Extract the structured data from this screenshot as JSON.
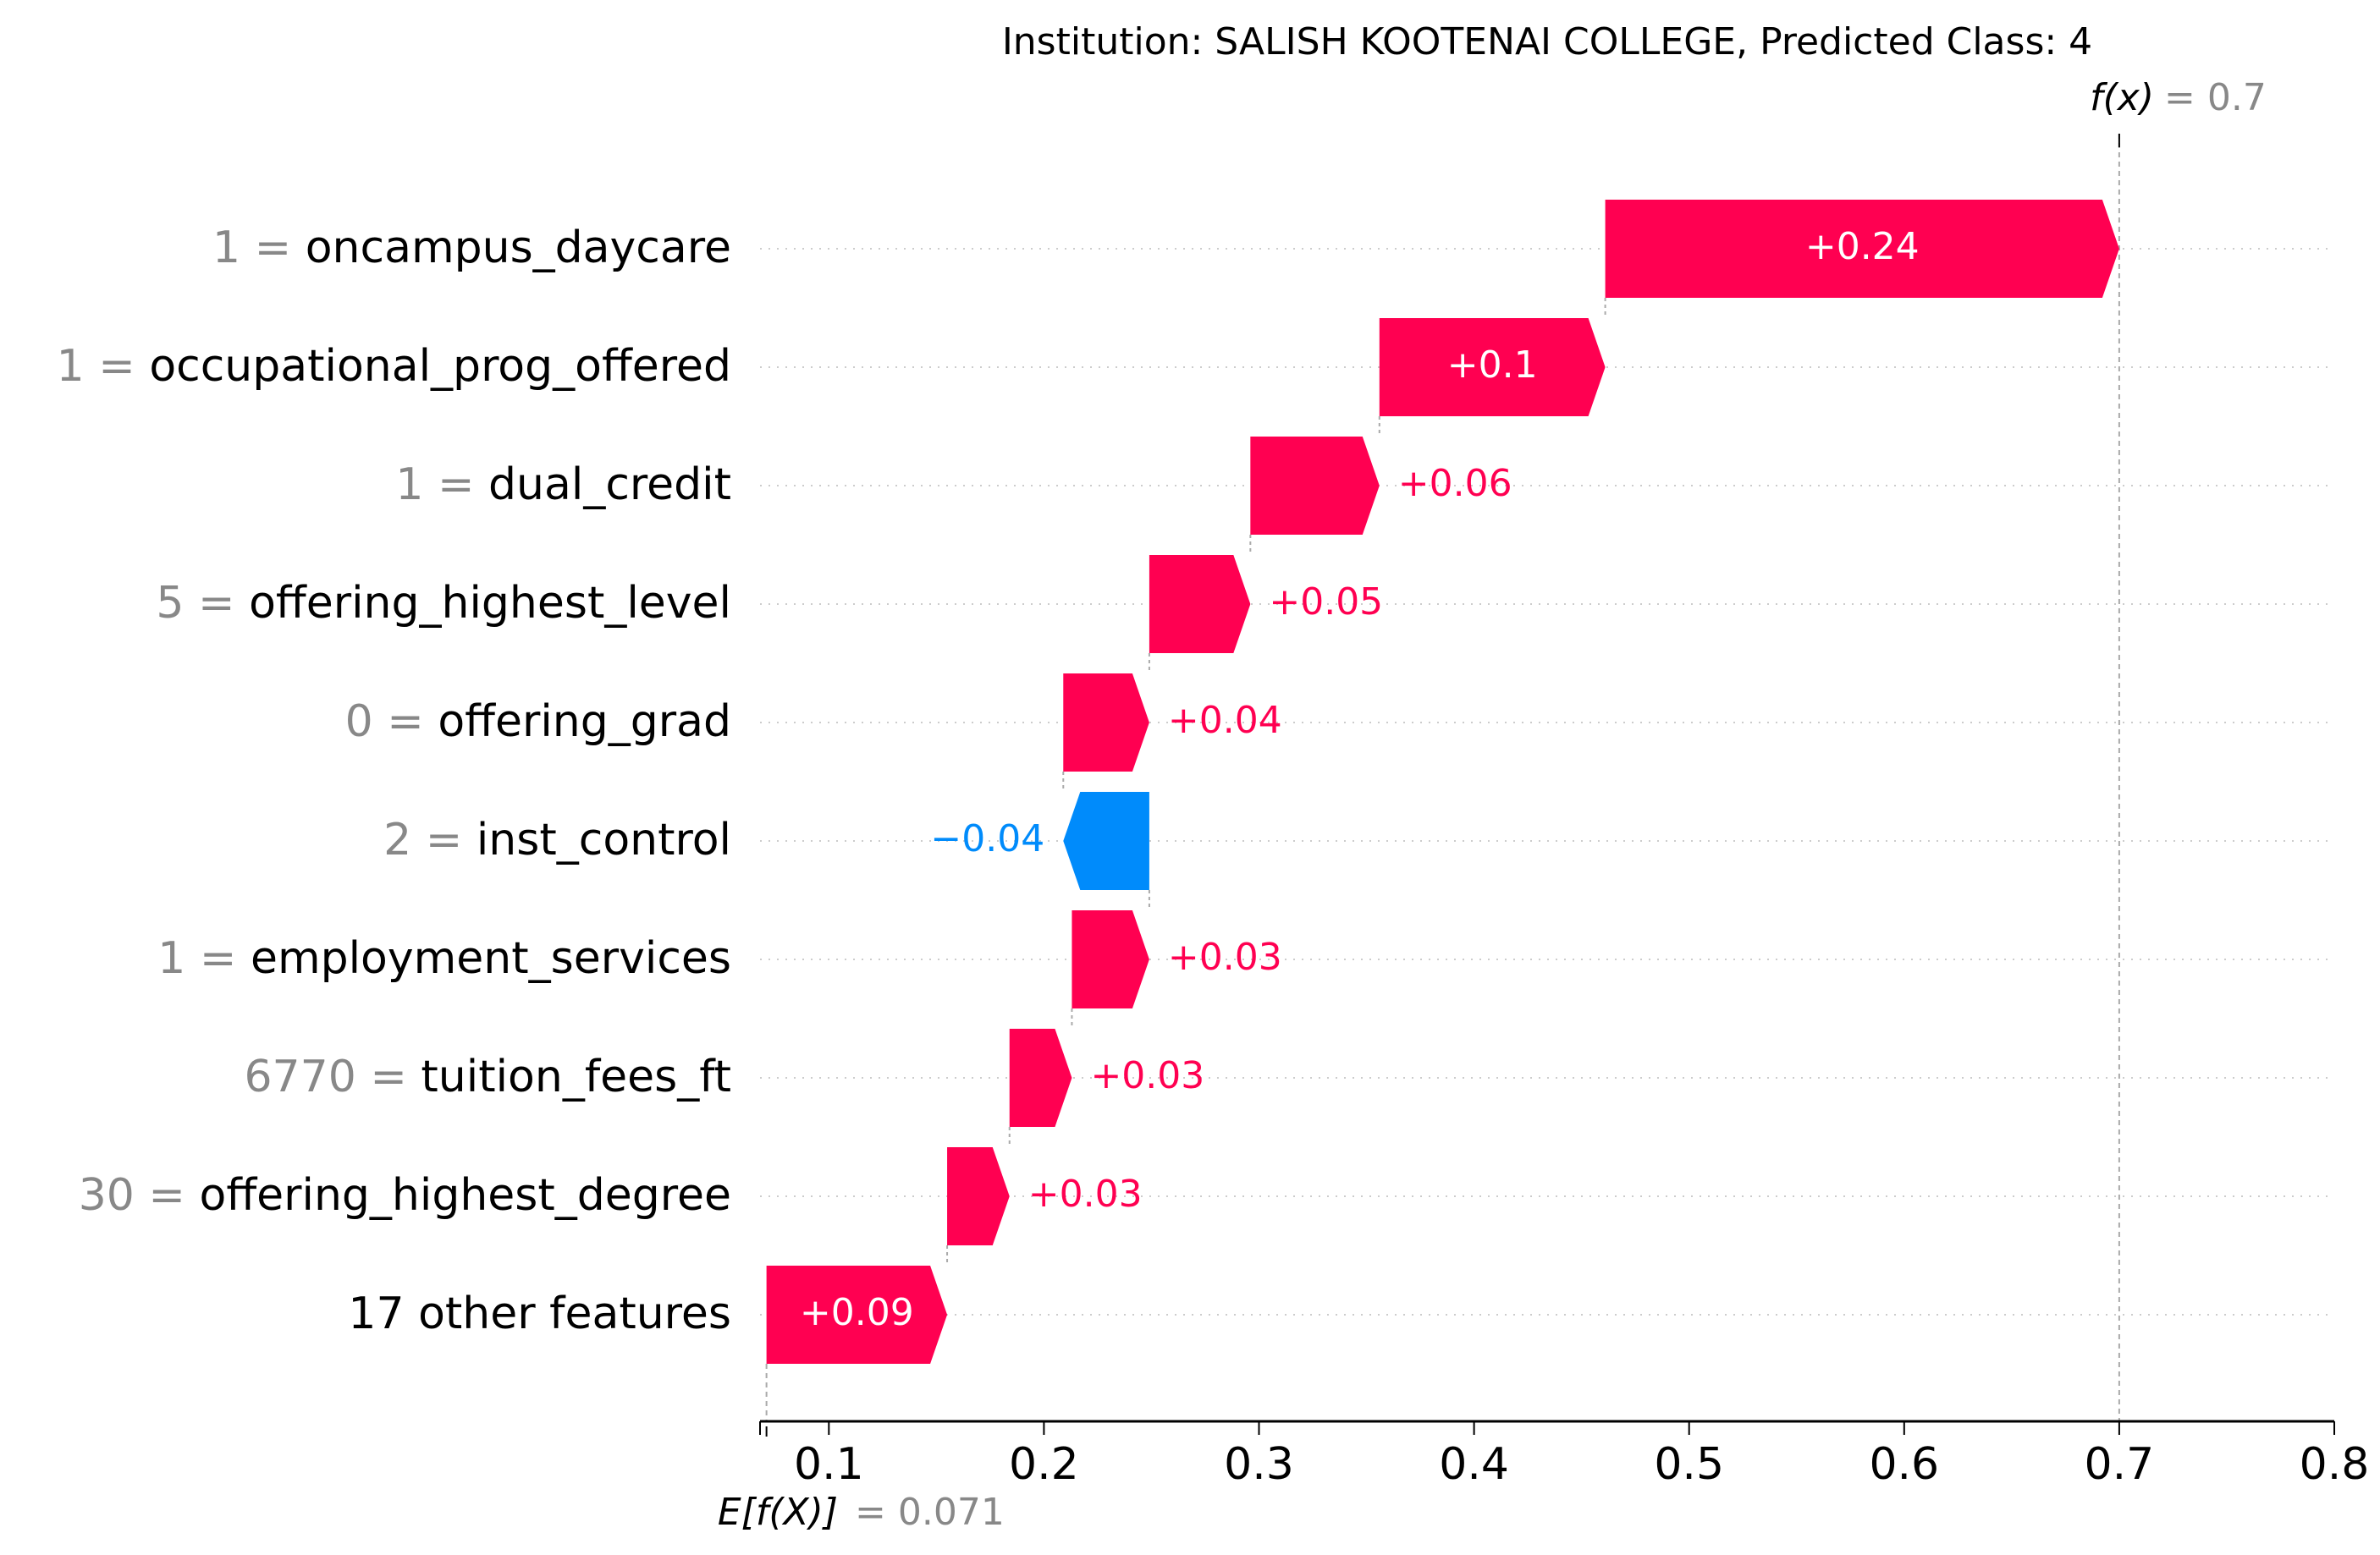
{
  "chart_data": {
    "type": "waterfall",
    "title": "Institution: SALISH KOOTENAI COLLEGE, Predicted Class: 4",
    "fx_label": "f(x)",
    "fx_value_text": "= 0.7",
    "efx_label": "E[f(X)]",
    "efx_value_text": "= 0.071",
    "base_value": 0.071,
    "output_value": 0.7,
    "xlim": [
      0.068,
      0.8
    ],
    "xticks": [
      0.1,
      0.2,
      0.3,
      0.4,
      0.5,
      0.6,
      0.7,
      0.8
    ],
    "xtick_labels": [
      "0.1",
      "0.2",
      "0.3",
      "0.4",
      "0.5",
      "0.6",
      "0.7",
      "0.8"
    ],
    "rows": [
      {
        "feature_value": "1",
        "feature_name": "oncampus_daycare",
        "label": "+0.24",
        "start": 0.461,
        "end": 0.7
      },
      {
        "feature_value": "1",
        "feature_name": "occupational_prog_offered",
        "label": "+0.1",
        "start": 0.356,
        "end": 0.461
      },
      {
        "feature_value": "1",
        "feature_name": "dual_credit",
        "label": "+0.06",
        "start": 0.296,
        "end": 0.356
      },
      {
        "feature_value": "5",
        "feature_name": "offering_highest_level",
        "label": "+0.05",
        "start": 0.249,
        "end": 0.296
      },
      {
        "feature_value": "0",
        "feature_name": "offering_grad",
        "label": "+0.04",
        "start": 0.209,
        "end": 0.249
      },
      {
        "feature_value": "2",
        "feature_name": "inst_control",
        "label": "−0.04",
        "start": 0.249,
        "end": 0.209
      },
      {
        "feature_value": "1",
        "feature_name": "employment_services",
        "label": "+0.03",
        "start": 0.213,
        "end": 0.249
      },
      {
        "feature_value": "6770",
        "feature_name": "tuition_fees_ft",
        "label": "+0.03",
        "start": 0.184,
        "end": 0.213
      },
      {
        "feature_value": "30",
        "feature_name": "offering_highest_degree",
        "label": "+0.03",
        "start": 0.155,
        "end": 0.184
      },
      {
        "feature_value": "",
        "feature_name": "17 other features",
        "label": "+0.09",
        "start": 0.071,
        "end": 0.155
      }
    ],
    "colors": {
      "positive": "#ff0051",
      "negative": "#008bfb",
      "value_gray": "#888888",
      "text": "#000000",
      "grid": "#cccccc"
    }
  }
}
